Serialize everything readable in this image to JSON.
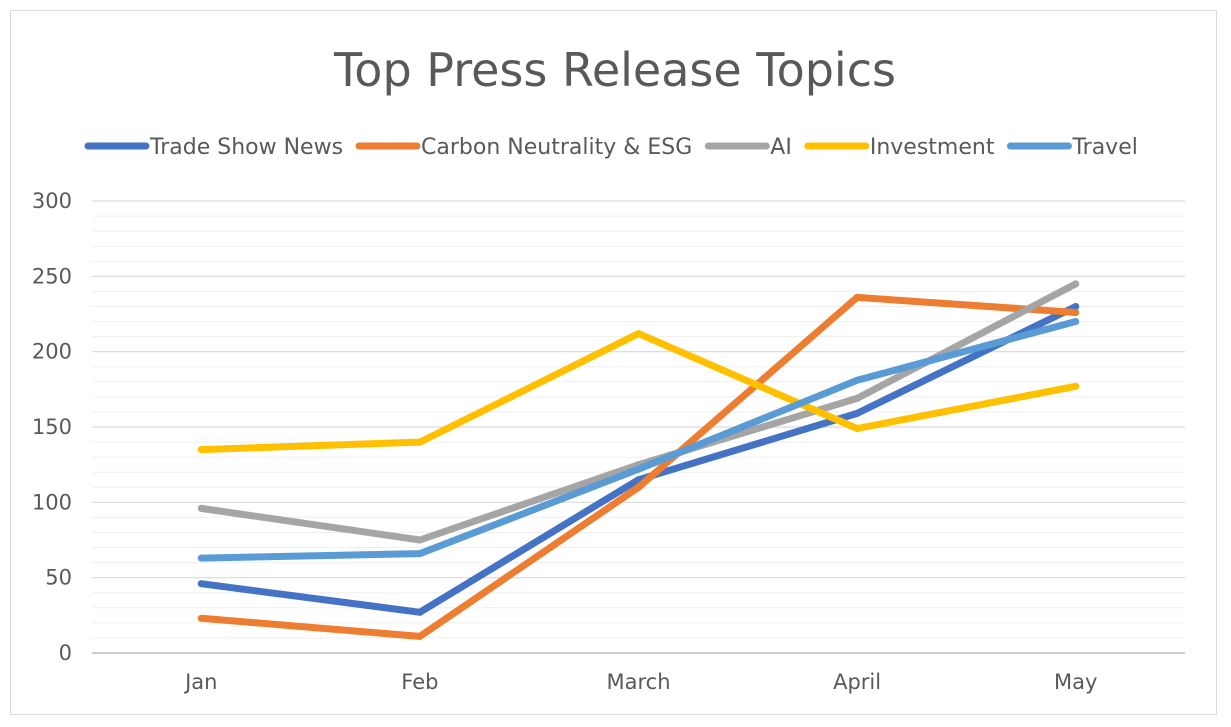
{
  "chart_data": {
    "type": "line",
    "title": "Top Press Release Topics",
    "xlabel": "",
    "ylabel": "",
    "categories": [
      "Jan",
      "Feb",
      "March",
      "April",
      "May"
    ],
    "ylim": [
      0,
      300
    ],
    "yticks": [
      0,
      50,
      100,
      150,
      200,
      250,
      300
    ],
    "minor_grid_step": 10,
    "grid": true,
    "legend_position": "top",
    "series": [
      {
        "name": "Trade Show News",
        "color": "#4472C4",
        "values": [
          46,
          27,
          115,
          159,
          230
        ]
      },
      {
        "name": "Carbon Neutrality & ESG",
        "color": "#ED7D31",
        "values": [
          23,
          11,
          110,
          236,
          226
        ]
      },
      {
        "name": "AI",
        "color": "#A5A5A5",
        "values": [
          96,
          75,
          125,
          169,
          245
        ]
      },
      {
        "name": "Investment",
        "color": "#FFC000",
        "values": [
          135,
          140,
          212,
          149,
          177
        ]
      },
      {
        "name": "Travel",
        "color": "#5B9BD5",
        "values": [
          63,
          66,
          122,
          181,
          220
        ]
      }
    ]
  }
}
